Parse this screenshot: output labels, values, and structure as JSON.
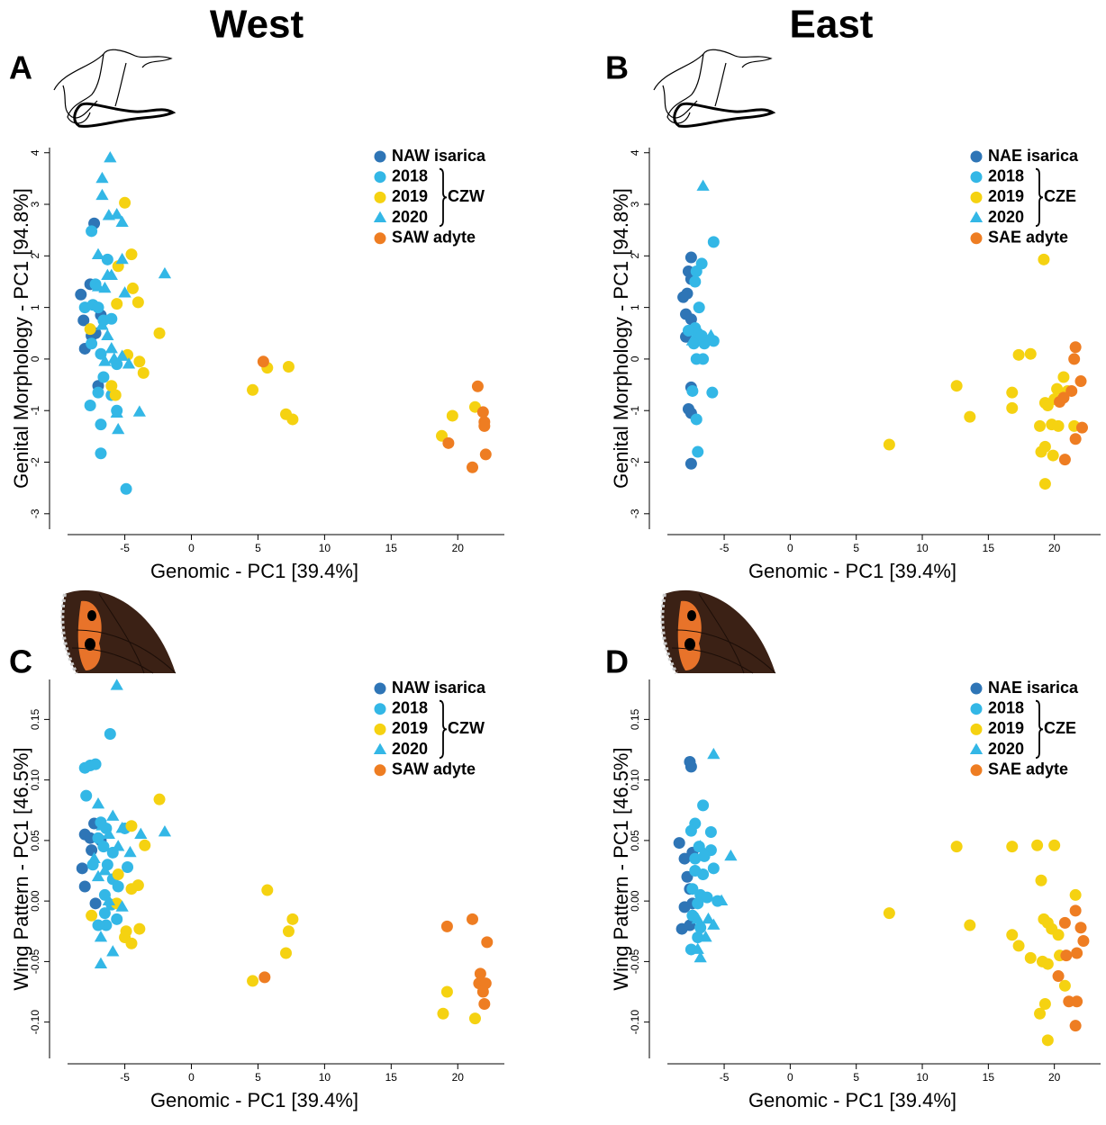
{
  "headings": [
    "West",
    "East"
  ],
  "chart_data": [
    {
      "type": "scatter",
      "label": "A",
      "xlabel": "Genomic - PC1 [39.4%]",
      "ylabel": "Genital Morphology - PC1 [94.8%]",
      "xlim": [
        -9.3,
        23.5
      ],
      "ylim": [
        -3.3,
        4.1
      ],
      "xticks": [
        -5,
        0,
        5,
        10,
        15,
        20
      ],
      "yticks": [
        -3,
        -2,
        -1,
        0,
        1,
        2,
        3,
        4
      ],
      "legend": "top-right",
      "group_label": "CZW",
      "series": [
        {
          "name": "NAW isarica",
          "color": "#2e75b6",
          "marker": "circle",
          "x": [
            -7.3,
            -8.3,
            -7.6,
            -8.1,
            -8.0,
            -7.2,
            -7.0,
            -7.5,
            -6.8
          ],
          "y": [
            2.63,
            1.25,
            1.45,
            0.75,
            0.2,
            0.5,
            -0.52,
            0.45,
            0.85
          ]
        },
        {
          "name": "2018",
          "color": "#33b7e6",
          "marker": "circle",
          "x": [
            -7.5,
            -6.3,
            -7.2,
            -8.0,
            -7.4,
            -7.0,
            -6.6,
            -6.0,
            -7.5,
            -6.8,
            -7.0,
            -6.6,
            -7.6,
            -6.8,
            -6.0,
            -5.6,
            -6.8,
            -4.9,
            -5.6
          ],
          "y": [
            2.48,
            1.93,
            1.45,
            1.0,
            1.05,
            1.0,
            0.75,
            0.78,
            0.3,
            0.1,
            -0.65,
            -0.35,
            -0.9,
            -1.27,
            -0.7,
            -1.0,
            -1.83,
            -2.52,
            -0.1
          ]
        },
        {
          "name": "2019",
          "color": "#f5d211",
          "marker": "circle",
          "x": [
            -5.0,
            -4.5,
            -5.5,
            -4.4,
            -4.0,
            -5.6,
            -7.6,
            -2.4,
            -4.8,
            -3.9,
            -3.6,
            -6.0,
            -5.7,
            4.6,
            5.7,
            7.3,
            7.1,
            7.6,
            18.8,
            19.6,
            21.3
          ],
          "y": [
            3.03,
            2.03,
            1.8,
            1.37,
            1.1,
            1.07,
            0.58,
            0.5,
            0.08,
            -0.05,
            -0.27,
            -0.52,
            -0.7,
            -0.6,
            -0.17,
            -0.15,
            -1.07,
            -1.17,
            -1.49,
            -1.1,
            -0.93
          ]
        },
        {
          "name": "2020",
          "color": "#33b7e6",
          "marker": "triangle",
          "x": [
            -6.1,
            -6.7,
            -6.7,
            -6.2,
            -5.6,
            -5.2,
            -7.0,
            -5.2,
            -6.3,
            -6.0,
            -6.5,
            -5.0,
            -2.0,
            -7.0,
            -6.7,
            -6.3,
            -6.0,
            -5.8,
            -4.7,
            -5.2,
            -6.5,
            -3.9,
            -5.6,
            -5.5
          ],
          "y": [
            3.9,
            3.5,
            3.17,
            2.78,
            2.8,
            2.65,
            2.02,
            1.93,
            1.62,
            1.62,
            1.37,
            1.28,
            1.65,
            1.4,
            0.65,
            0.45,
            0.2,
            0.0,
            -0.1,
            0.05,
            -0.05,
            -1.03,
            -1.05,
            -1.37
          ]
        },
        {
          "name": "SAW adyte",
          "color": "#ee7d22",
          "marker": "circle",
          "x": [
            5.4,
            21.5,
            21.9,
            22.0,
            22.0,
            19.3,
            22.1,
            21.1
          ],
          "y": [
            -0.05,
            -0.53,
            -1.03,
            -1.22,
            -1.3,
            -1.63,
            -1.85,
            -2.1
          ]
        }
      ]
    },
    {
      "type": "scatter",
      "label": "B",
      "xlabel": "Genomic - PC1 [39.4%]",
      "ylabel": "Genital Morphology - PC1 [94.8%]",
      "xlim": [
        -9.3,
        23.5
      ],
      "ylim": [
        -3.3,
        4.1
      ],
      "xticks": [
        -5,
        0,
        5,
        10,
        15,
        20
      ],
      "yticks": [
        -3,
        -2,
        -1,
        0,
        1,
        2,
        3,
        4
      ],
      "legend": "top-right",
      "group_label": "CZE",
      "series": [
        {
          "name": "NAE isarica",
          "color": "#2e75b6",
          "marker": "circle",
          "x": [
            -7.5,
            -7.7,
            -7.5,
            -8.1,
            -7.8,
            -7.9,
            -7.5,
            -7.9,
            -7.5,
            -7.7,
            -7.5,
            -7.5
          ],
          "y": [
            1.97,
            1.7,
            1.55,
            1.2,
            1.27,
            0.87,
            0.77,
            0.43,
            -0.55,
            -0.97,
            -1.05,
            -2.03
          ]
        },
        {
          "name": "2018",
          "color": "#33b7e6",
          "marker": "circle",
          "x": [
            -5.8,
            -6.7,
            -7.1,
            -7.2,
            -6.9,
            -7.2,
            -7.0,
            -6.5,
            -5.8,
            -7.3,
            -7.1,
            -6.6,
            -7.4,
            -5.9,
            -7.1,
            -7.0,
            -6.7,
            -7.7
          ],
          "y": [
            2.27,
            1.85,
            1.7,
            1.5,
            1.0,
            0.6,
            0.5,
            0.3,
            0.35,
            0.3,
            0.0,
            0.0,
            -0.62,
            -0.65,
            -1.17,
            -1.8,
            0.45,
            0.55
          ]
        },
        {
          "name": "2019",
          "color": "#f5d211",
          "marker": "circle",
          "x": [
            19.2,
            7.5,
            12.6,
            13.6,
            16.8,
            16.8,
            17.3,
            18.2,
            19.3,
            19.5,
            19.8,
            20.3,
            18.9,
            19.0,
            19.3,
            19.9,
            19.3,
            20.2,
            20.7,
            21.0,
            21.5,
            20.0
          ],
          "y": [
            1.93,
            -1.66,
            -0.52,
            -1.12,
            -0.65,
            -0.95,
            0.08,
            0.1,
            -0.85,
            -0.9,
            -1.27,
            -1.3,
            -1.3,
            -1.8,
            -1.7,
            -1.87,
            -2.42,
            -0.58,
            -0.35,
            -0.62,
            -1.3,
            -0.78
          ]
        },
        {
          "name": "2020",
          "color": "#33b7e6",
          "marker": "triangle",
          "x": [
            -6.6,
            -6.0,
            -7.4
          ],
          "y": [
            3.35,
            0.45,
            0.35
          ]
        },
        {
          "name": "SAE adyte",
          "color": "#ee7d22",
          "marker": "circle",
          "x": [
            21.6,
            21.5,
            22.0,
            21.3,
            20.7,
            20.4,
            22.1,
            21.6,
            20.8
          ],
          "y": [
            0.23,
            0.0,
            -0.43,
            -0.62,
            -0.75,
            -0.83,
            -1.33,
            -1.55,
            -1.95
          ]
        }
      ]
    },
    {
      "type": "scatter",
      "label": "C",
      "xlabel": "Genomic - PC1 [39.4%]",
      "ylabel": "Wing Pattern - PC1 [46.5%]",
      "xlim": [
        -9.3,
        23.5
      ],
      "ylim": [
        -0.13,
        0.183
      ],
      "xticks": [
        -5,
        0,
        5,
        10,
        15,
        20
      ],
      "yticks": [
        {
          "value": -0.1,
          "label": "-0.10"
        },
        -0.05,
        {
          "value": 0,
          "label": "0.00"
        },
        0.05,
        {
          "value": 0.1,
          "label": "0.10"
        },
        0.15
      ],
      "legend": "top-right",
      "group_label": "CZW",
      "series": [
        {
          "name": "NAW isarica",
          "color": "#2e75b6",
          "marker": "circle",
          "x": [
            -8.0,
            -7.6,
            -7.5,
            -8.2,
            -8.0,
            -7.2,
            -7.3,
            -6.8
          ],
          "y": [
            0.055,
            0.052,
            0.042,
            0.027,
            0.012,
            -0.002,
            0.064,
            0.05
          ]
        },
        {
          "name": "2018",
          "color": "#33b7e6",
          "marker": "circle",
          "x": [
            -6.1,
            -8.0,
            -7.6,
            -7.2,
            -7.9,
            -6.8,
            -6.4,
            -7.0,
            -6.6,
            -5.9,
            -7.4,
            -6.3,
            -5.9,
            -4.8,
            -6.5,
            -6.0,
            -6.4,
            -7.0,
            -5.5,
            -5.0,
            -5.6,
            -6.5
          ],
          "y": [
            0.138,
            0.11,
            0.112,
            0.113,
            0.087,
            0.065,
            0.06,
            0.052,
            0.045,
            0.04,
            0.03,
            0.03,
            0.018,
            0.028,
            0.005,
            -0.003,
            -0.02,
            -0.02,
            0.012,
            0.06,
            -0.015,
            -0.01
          ]
        },
        {
          "name": "2019",
          "color": "#f5d211",
          "marker": "circle",
          "x": [
            -2.4,
            -4.5,
            -3.5,
            -5.5,
            -4.0,
            -4.5,
            -5.6,
            -7.5,
            -4.9,
            -5.0,
            -3.9,
            -4.5,
            5.7,
            7.3,
            7.6,
            7.1,
            4.6,
            19.2,
            18.9,
            21.3
          ],
          "y": [
            0.084,
            0.062,
            0.046,
            0.022,
            0.013,
            0.01,
            -0.002,
            -0.012,
            -0.025,
            -0.03,
            -0.023,
            -0.035,
            0.009,
            -0.025,
            -0.015,
            -0.043,
            -0.066,
            -0.075,
            -0.093,
            -0.097
          ]
        },
        {
          "name": "2020",
          "color": "#33b7e6",
          "marker": "triangle",
          "x": [
            -5.6,
            -7.0,
            -5.9,
            -6.7,
            -6.2,
            -5.2,
            -3.8,
            -2.0,
            -5.5,
            -6.5,
            -7.0,
            -4.6,
            -6.2,
            -6.8,
            -5.9,
            -6.8,
            -5.2,
            -7.3
          ],
          "y": [
            0.178,
            0.08,
            0.07,
            0.062,
            0.055,
            0.06,
            0.055,
            0.057,
            0.045,
            0.025,
            0.02,
            0.04,
            0.0,
            -0.03,
            -0.042,
            -0.052,
            -0.005,
            0.035
          ]
        },
        {
          "name": "SAW adyte",
          "color": "#ee7d22",
          "marker": "circle",
          "x": [
            5.5,
            19.2,
            21.1,
            22.2,
            21.7,
            21.6,
            22.1,
            21.9,
            22.0
          ],
          "y": [
            -0.063,
            -0.021,
            -0.015,
            -0.034,
            -0.06,
            -0.068,
            -0.068,
            -0.075,
            -0.085
          ]
        }
      ]
    },
    {
      "type": "scatter",
      "label": "D",
      "xlabel": "Genomic - PC1 [39.4%]",
      "ylabel": "Wing Pattern - PC1 [46.5%]",
      "xlim": [
        -9.3,
        23.5
      ],
      "ylim": [
        -0.13,
        0.183
      ],
      "xticks": [
        -5,
        0,
        5,
        10,
        15,
        20
      ],
      "yticks": [
        {
          "value": -0.1,
          "label": "-0.10"
        },
        -0.05,
        {
          "value": 0,
          "label": "0.00"
        },
        0.05,
        {
          "value": 0.1,
          "label": "0.10"
        },
        0.15
      ],
      "legend": "top-right",
      "group_label": "CZE",
      "series": [
        {
          "name": "NAE isarica",
          "color": "#2e75b6",
          "marker": "circle",
          "x": [
            -7.6,
            -7.5,
            -8.4,
            -8.0,
            -7.4,
            -7.8,
            -7.6,
            -8.0,
            -8.2,
            -7.4,
            -7.6
          ],
          "y": [
            0.115,
            0.111,
            0.048,
            0.035,
            0.04,
            0.02,
            0.01,
            -0.005,
            -0.023,
            -0.002,
            -0.02
          ]
        },
        {
          "name": "2018",
          "color": "#33b7e6",
          "marker": "circle",
          "x": [
            -6.6,
            -7.2,
            -7.5,
            -6.0,
            -6.9,
            -7.2,
            -6.0,
            -6.5,
            -7.2,
            -6.6,
            -5.8,
            -7.4,
            -6.8,
            -6.3,
            -7.0,
            -7.4,
            -6.8,
            -7.0,
            -7.5,
            -5.5
          ],
          "y": [
            0.079,
            0.064,
            0.058,
            0.057,
            0.045,
            0.035,
            0.042,
            0.037,
            0.025,
            0.022,
            0.027,
            0.01,
            0.005,
            0.003,
            -0.002,
            -0.012,
            -0.022,
            -0.03,
            -0.04,
            0.0
          ]
        },
        {
          "name": "2019",
          "color": "#f5d211",
          "marker": "circle",
          "x": [
            7.5,
            12.6,
            16.8,
            18.7,
            20.0,
            19.0,
            21.6,
            13.6,
            16.8,
            17.3,
            18.2,
            19.2,
            19.5,
            19.8,
            20.3,
            19.1,
            19.5,
            20.4,
            20.8,
            19.3,
            18.9,
            19.5
          ],
          "y": [
            -0.01,
            0.045,
            0.045,
            0.046,
            0.046,
            0.017,
            0.005,
            -0.02,
            -0.028,
            -0.037,
            -0.047,
            -0.015,
            -0.018,
            -0.023,
            -0.028,
            -0.05,
            -0.052,
            -0.045,
            -0.07,
            -0.085,
            -0.093,
            -0.115
          ]
        },
        {
          "name": "2020",
          "color": "#33b7e6",
          "marker": "triangle",
          "x": [
            -5.8,
            -4.5,
            -6.8,
            -7.0,
            -6.2,
            -5.2,
            -5.8,
            -6.4,
            -7.0,
            -6.8
          ],
          "y": [
            0.121,
            0.037,
            0.045,
            -0.015,
            -0.015,
            0.0,
            -0.02,
            -0.03,
            -0.04,
            -0.047
          ]
        },
        {
          "name": "SAE adyte",
          "color": "#ee7d22",
          "marker": "circle",
          "x": [
            21.6,
            20.8,
            22.0,
            22.2,
            20.9,
            21.7,
            20.3,
            21.1,
            21.7,
            21.6
          ],
          "y": [
            -0.008,
            -0.018,
            -0.022,
            -0.033,
            -0.045,
            -0.043,
            -0.062,
            -0.083,
            -0.083,
            -0.103
          ]
        }
      ]
    }
  ]
}
